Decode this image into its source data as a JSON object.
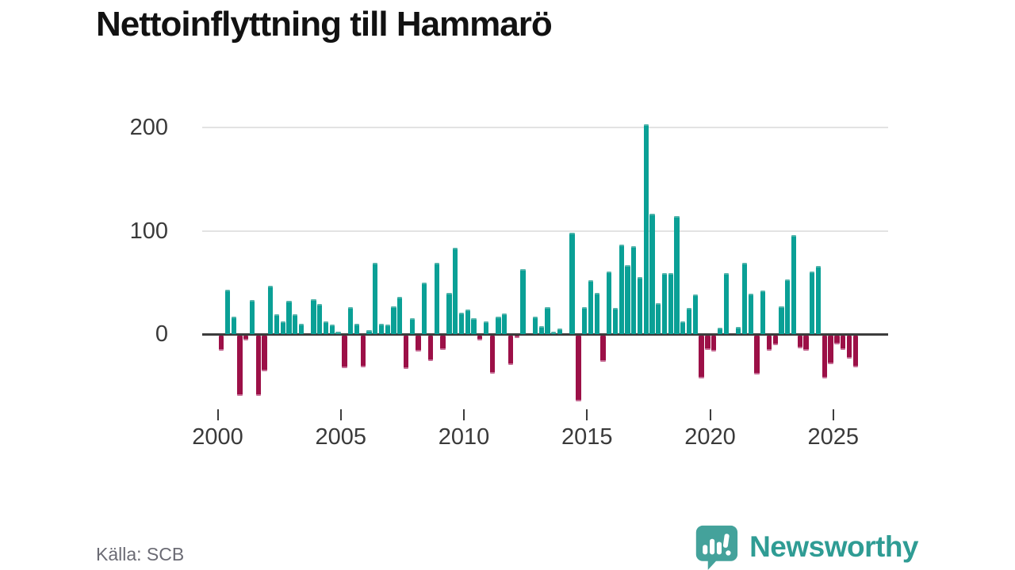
{
  "title": "Nettoinflyttning till Hammarö",
  "source": "Källa: SCB",
  "logo": {
    "text": "Newsworthy",
    "icon_color": "#44a29b",
    "text_color": "#2f9c94"
  },
  "chart_data": {
    "type": "bar",
    "title": "Nettoinflyttning till Hammarö",
    "frequency": "quarterly",
    "start_year": 2000,
    "start_quarter": 1,
    "x_tick_labels": [
      "2000",
      "2005",
      "2010",
      "2015",
      "2020",
      "2025"
    ],
    "y_ticks": [
      0,
      100,
      200
    ],
    "y_tick_labels": [
      "0",
      "100",
      "200"
    ],
    "ylim": [
      -70,
      210
    ],
    "grid": "horizontal",
    "legend": "none",
    "xlabel": "",
    "ylabel": "",
    "positive_color": "#0aa096",
    "positive_cap_color": "#4fb3aa",
    "negative_color": "#9c1047",
    "negative_cap_color": "#c66d95",
    "values": [
      -16,
      43,
      17,
      -60,
      -6,
      33,
      -60,
      -36,
      47,
      19,
      12,
      32,
      19,
      10,
      0,
      34,
      29,
      12,
      9,
      2,
      -33,
      26,
      10,
      -32,
      4,
      69,
      10,
      9,
      27,
      36,
      -34,
      15,
      -17,
      50,
      -26,
      69,
      -15,
      40,
      84,
      21,
      24,
      15,
      -6,
      12,
      -38,
      17,
      20,
      -30,
      -4,
      63,
      0,
      17,
      8,
      26,
      2,
      5,
      0,
      98,
      -65,
      26,
      52,
      40,
      -27,
      61,
      25,
      87,
      67,
      85,
      55,
      203,
      117,
      30,
      59,
      59,
      114,
      12,
      25,
      38,
      -43,
      -15,
      -17,
      6,
      59,
      0,
      7,
      69,
      39,
      -39,
      42,
      -16,
      -11,
      27,
      53,
      96,
      -14,
      -16,
      61,
      66,
      -43,
      -29,
      -10,
      -15,
      -24,
      -32
    ]
  }
}
